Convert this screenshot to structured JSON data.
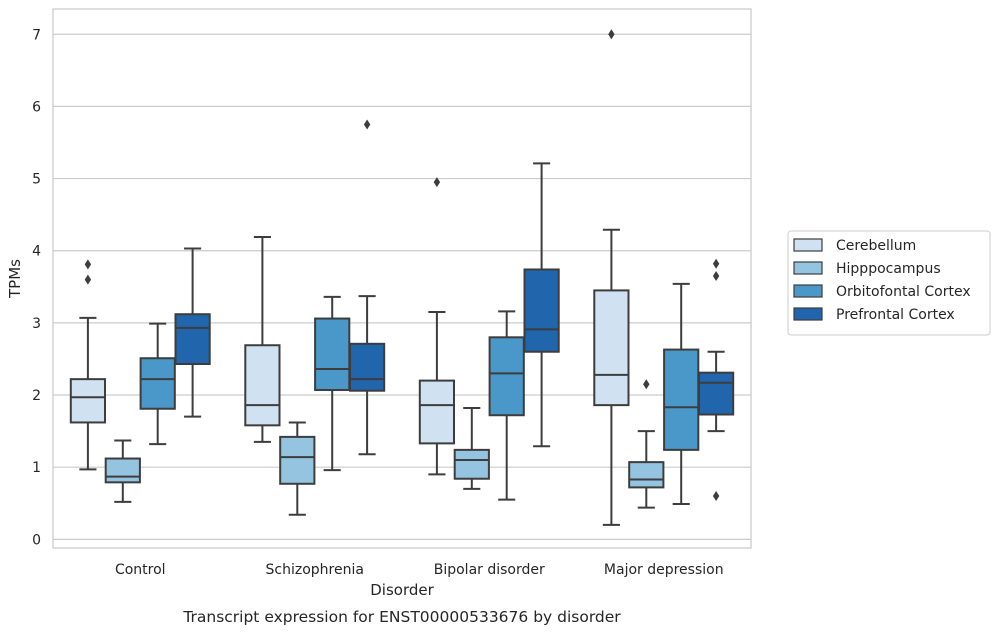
{
  "chart_data": {
    "type": "box",
    "caption": "Transcript expression for ENST00000533676 by disorder",
    "xlabel": "Disorder",
    "ylabel": "TPMs",
    "ylim": [
      -0.12,
      7.35
    ],
    "yticks": [
      0,
      1,
      2,
      3,
      4,
      5,
      6,
      7
    ],
    "grid": "horizontal",
    "legend_position": "right",
    "categories": [
      "Control",
      "Schizophrenia",
      "Bipolar disorder",
      "Major depression"
    ],
    "series": [
      {
        "name": "Cerebellum",
        "color": "#d0e1f2",
        "boxes": [
          {
            "whisker_low": 0.97,
            "q1": 1.62,
            "median": 1.97,
            "q3": 2.22,
            "whisker_high": 3.07,
            "outliers": [
              3.6,
              3.81
            ]
          },
          {
            "whisker_low": 1.35,
            "q1": 1.58,
            "median": 1.86,
            "q3": 2.69,
            "whisker_high": 4.19,
            "outliers": []
          },
          {
            "whisker_low": 0.9,
            "q1": 1.33,
            "median": 1.86,
            "q3": 2.2,
            "whisker_high": 3.15,
            "outliers": [
              4.95
            ]
          },
          {
            "whisker_low": 0.2,
            "q1": 1.86,
            "median": 2.28,
            "q3": 3.45,
            "whisker_high": 4.29,
            "outliers": [
              7.0
            ]
          }
        ]
      },
      {
        "name": "Hipppocampus",
        "color": "#94c4df",
        "boxes": [
          {
            "whisker_low": 0.52,
            "q1": 0.79,
            "median": 0.87,
            "q3": 1.12,
            "whisker_high": 1.37,
            "outliers": []
          },
          {
            "whisker_low": 0.34,
            "q1": 0.77,
            "median": 1.14,
            "q3": 1.42,
            "whisker_high": 1.62,
            "outliers": []
          },
          {
            "whisker_low": 0.7,
            "q1": 0.84,
            "median": 1.1,
            "q3": 1.24,
            "whisker_high": 1.82,
            "outliers": []
          },
          {
            "whisker_low": 0.44,
            "q1": 0.72,
            "median": 0.83,
            "q3": 1.07,
            "whisker_high": 1.5,
            "outliers": [
              2.15
            ]
          }
        ]
      },
      {
        "name": "Orbitofontal Cortex",
        "color": "#4a98c9",
        "boxes": [
          {
            "whisker_low": 1.32,
            "q1": 1.81,
            "median": 2.22,
            "q3": 2.51,
            "whisker_high": 2.99,
            "outliers": []
          },
          {
            "whisker_low": 0.96,
            "q1": 2.07,
            "median": 2.36,
            "q3": 3.06,
            "whisker_high": 3.36,
            "outliers": []
          },
          {
            "whisker_low": 0.55,
            "q1": 1.72,
            "median": 2.3,
            "q3": 2.8,
            "whisker_high": 3.16,
            "outliers": []
          },
          {
            "whisker_low": 0.49,
            "q1": 1.24,
            "median": 1.83,
            "q3": 2.63,
            "whisker_high": 3.54,
            "outliers": []
          }
        ]
      },
      {
        "name": "Prefrontal Cortex",
        "color": "#2166ac",
        "boxes": [
          {
            "whisker_low": 1.7,
            "q1": 2.43,
            "median": 2.93,
            "q3": 3.12,
            "whisker_high": 4.03,
            "outliers": []
          },
          {
            "whisker_low": 1.18,
            "q1": 2.06,
            "median": 2.22,
            "q3": 2.71,
            "whisker_high": 3.37,
            "outliers": [
              5.75
            ]
          },
          {
            "whisker_low": 1.29,
            "q1": 2.6,
            "median": 2.91,
            "q3": 3.74,
            "whisker_high": 5.21,
            "outliers": []
          },
          {
            "whisker_low": 1.5,
            "q1": 1.73,
            "median": 2.17,
            "q3": 2.31,
            "whisker_high": 2.6,
            "outliers": [
              0.6,
              3.65,
              3.82
            ]
          }
        ]
      }
    ]
  }
}
